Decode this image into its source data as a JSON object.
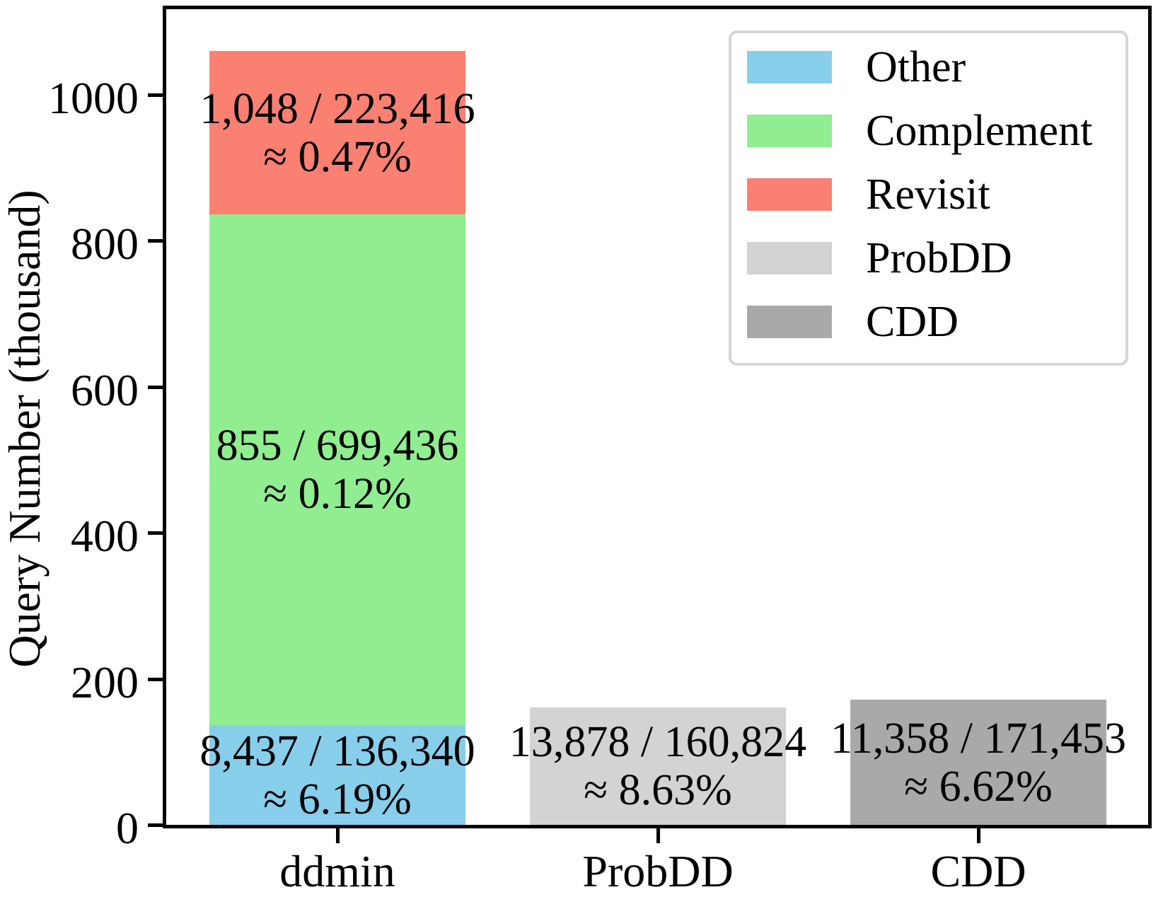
{
  "chart_data": {
    "type": "bar",
    "subtype": "stacked",
    "title": "",
    "xlabel": "",
    "ylabel": "Query Number (thousand)",
    "ylim": [
      0,
      1122
    ],
    "yticks": [
      0,
      200,
      400,
      600,
      800,
      1000
    ],
    "grid": false,
    "categories": [
      "ddmin",
      "ProbDD",
      "CDD"
    ],
    "series": [
      {
        "name": "Other",
        "color": "#87CEEB",
        "values": [
          136.34,
          0,
          0
        ]
      },
      {
        "name": "Complement",
        "color": "#90EE90",
        "values": [
          699.436,
          0,
          0
        ]
      },
      {
        "name": "Revisit",
        "color": "#FA8072",
        "values": [
          223.416,
          0,
          0
        ]
      },
      {
        "name": "ProbDD",
        "color": "#D3D3D3",
        "values": [
          0,
          160.824,
          0
        ]
      },
      {
        "name": "CDD",
        "color": "#A9A9A9",
        "values": [
          0,
          0,
          171.453
        ]
      }
    ],
    "bars": [
      {
        "category": "ddmin",
        "segments": [
          {
            "series": "Other",
            "value_thousand": 136.34,
            "color": "#87CEEB",
            "label_line1": "8,437 / 136,340",
            "label_line2": "≈ 6.19%"
          },
          {
            "series": "Complement",
            "value_thousand": 699.436,
            "color": "#90EE90",
            "label_line1": "855 / 699,436",
            "label_line2": "≈ 0.12%"
          },
          {
            "series": "Revisit",
            "value_thousand": 223.416,
            "color": "#FA8072",
            "label_line1": "1,048 / 223,416",
            "label_line2": "≈ 0.47%"
          }
        ]
      },
      {
        "category": "ProbDD",
        "segments": [
          {
            "series": "ProbDD",
            "value_thousand": 160.824,
            "color": "#D3D3D3",
            "label_line1": "13,878 / 160,824",
            "label_line2": "≈ 8.63%"
          }
        ]
      },
      {
        "category": "CDD",
        "segments": [
          {
            "series": "CDD",
            "value_thousand": 171.453,
            "color": "#A9A9A9",
            "label_line1": "11,358 / 171,453",
            "label_line2": "≈ 6.62%"
          }
        ]
      }
    ],
    "legend": {
      "position": "upper right",
      "items": [
        {
          "label": "Other",
          "color": "#87CEEB"
        },
        {
          "label": "Complement",
          "color": "#90EE90"
        },
        {
          "label": "Revisit",
          "color": "#FA8072"
        },
        {
          "label": "ProbDD",
          "color": "#D3D3D3"
        },
        {
          "label": "CDD",
          "color": "#A9A9A9"
        }
      ]
    }
  }
}
